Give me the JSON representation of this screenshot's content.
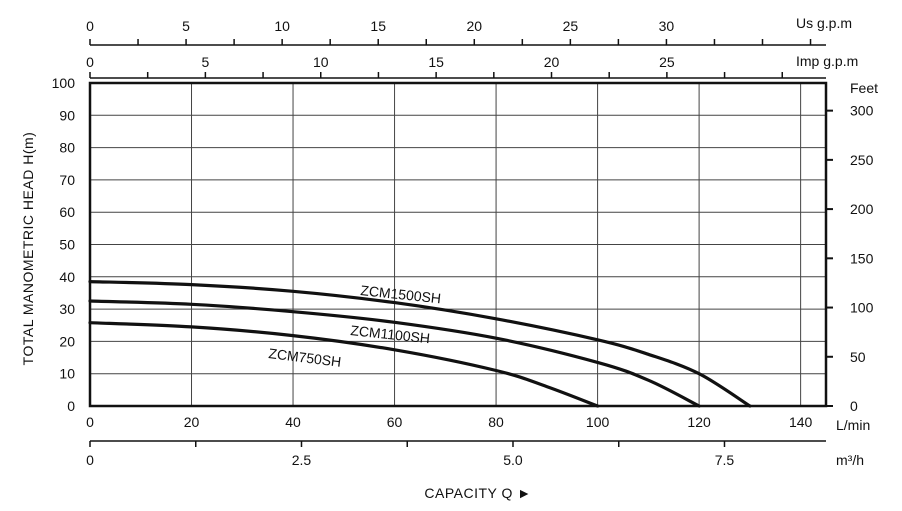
{
  "chart_data": {
    "type": "line",
    "title": "",
    "xlabel": "CAPACITY Q ►",
    "ylabel": "TOTAL MANOMETRIC HEAD  H(m)",
    "y2label": "Feet",
    "x_unit_label": "L/min",
    "xlim": [
      0,
      145
    ],
    "ylim": [
      0,
      100
    ],
    "x_ticks": [
      0,
      20,
      40,
      60,
      80,
      100,
      120,
      140
    ],
    "y_ticks": [
      0,
      10,
      20,
      30,
      40,
      50,
      60,
      70,
      80,
      90,
      100
    ],
    "feet_ticks": [
      0,
      50,
      100,
      150,
      200,
      250,
      300
    ],
    "feet_per_m": 3.2808,
    "grid": true,
    "series": [
      {
        "name": "ZCM1500SH",
        "x": [
          0,
          20,
          40,
          60,
          80,
          100,
          110,
          120,
          130
        ],
        "y": [
          38.5,
          37.6,
          35.5,
          32.0,
          27.0,
          20.5,
          16.0,
          10.0,
          0
        ]
      },
      {
        "name": "ZCM1100SH",
        "x": [
          0,
          20,
          40,
          60,
          80,
          100,
          110,
          120
        ],
        "y": [
          32.5,
          31.5,
          29.2,
          25.9,
          21.0,
          13.5,
          8.0,
          0
        ]
      },
      {
        "name": "ZCM750SH",
        "x": [
          0,
          20,
          40,
          60,
          80,
          90,
          100
        ],
        "y": [
          25.8,
          24.5,
          21.8,
          17.4,
          11.0,
          6.0,
          0
        ]
      }
    ],
    "secondary_axes": {
      "usgpm": {
        "unit": "Us g.p.m",
        "ticks": [
          0,
          5,
          10,
          15,
          20,
          25,
          30
        ],
        "lmin_per_unit": 3.78541
      },
      "impgpm": {
        "unit": "Imp g.p.m",
        "ticks": [
          0,
          5,
          10,
          15,
          20,
          25
        ],
        "lmin_per_unit": 4.54609
      },
      "m3h": {
        "unit": "m³/h",
        "ticks": [
          0,
          2.5,
          5.0,
          7.5
        ],
        "tick_labels": [
          "0",
          "2.5",
          "5.0",
          "7.5"
        ],
        "lmin_per_unit": 16.6667
      }
    }
  }
}
